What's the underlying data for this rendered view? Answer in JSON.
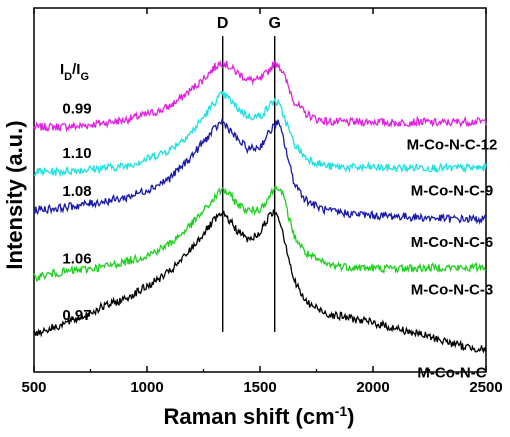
{
  "chart_data": {
    "type": "line",
    "title": "",
    "xlabel": "Raman shift (cm",
    "xlabel_sup": "-1",
    "xlabel_suffix": ")",
    "ylabel": "Intensity (a.u.)",
    "xlim": [
      500,
      2500
    ],
    "xticks": [
      500,
      1000,
      1500,
      2000,
      2500
    ],
    "y_scale": "arbitrary units (stacked, offset traces, no y tick labels)",
    "ylim": [
      0,
      10
    ],
    "grid": false,
    "legend": "none (series labelled in-plot on the right)",
    "ratio_header": {
      "main": "I",
      "sub1": "D",
      "slash": "/I",
      "sub2": "G"
    },
    "peak_lines": [
      {
        "label": "D",
        "x": 1335
      },
      {
        "label": "G",
        "x": 1565
      }
    ],
    "series": [
      {
        "name": "M-Co-N-C-12",
        "color": "#e020e0",
        "ratio": "0.99",
        "x": [
          500,
          600,
          700,
          800,
          900,
          1000,
          1050,
          1100,
          1150,
          1200,
          1250,
          1300,
          1330,
          1350,
          1400,
          1450,
          1500,
          1530,
          1560,
          1580,
          1600,
          1630,
          1650,
          1700,
          1750,
          1800,
          1900,
          2000,
          2100,
          2200,
          2300,
          2400,
          2500
        ],
        "values": [
          6.72,
          6.74,
          6.75,
          6.84,
          6.92,
          7.08,
          7.16,
          7.3,
          7.52,
          7.78,
          8.05,
          8.38,
          8.5,
          8.45,
          8.22,
          8.02,
          8.02,
          8.22,
          8.45,
          8.48,
          8.25,
          7.78,
          7.45,
          7.1,
          6.95,
          6.88,
          6.86,
          6.88,
          6.84,
          6.88,
          6.84,
          6.88,
          6.88
        ]
      },
      {
        "name": "M-Co-N-C-9",
        "color": "#20e0e0",
        "ratio": "1.10",
        "x": [
          500,
          600,
          700,
          800,
          900,
          1000,
          1050,
          1100,
          1150,
          1200,
          1250,
          1300,
          1330,
          1350,
          1400,
          1450,
          1500,
          1530,
          1560,
          1580,
          1600,
          1630,
          1650,
          1700,
          1750,
          1800,
          1900,
          2000,
          2100,
          2200,
          2300,
          2400,
          2500
        ],
        "values": [
          5.5,
          5.5,
          5.55,
          5.6,
          5.65,
          5.85,
          5.98,
          6.1,
          6.35,
          6.6,
          7.0,
          7.42,
          7.62,
          7.58,
          7.25,
          7.02,
          7.02,
          7.22,
          7.45,
          7.38,
          7.12,
          6.62,
          6.28,
          5.9,
          5.75,
          5.65,
          5.62,
          5.62,
          5.6,
          5.62,
          5.6,
          5.6,
          5.62
        ]
      },
      {
        "name": "M-Co-N-C-6",
        "color": "#1a1aa8",
        "ratio": "1.08",
        "x": [
          500,
          600,
          700,
          800,
          900,
          1000,
          1050,
          1100,
          1150,
          1200,
          1250,
          1300,
          1330,
          1350,
          1400,
          1450,
          1500,
          1530,
          1560,
          1580,
          1600,
          1630,
          1650,
          1700,
          1750,
          1800,
          1900,
          2000,
          2100,
          2200,
          2300,
          2400,
          2500
        ],
        "values": [
          4.45,
          4.5,
          4.58,
          4.68,
          4.78,
          5.0,
          5.15,
          5.32,
          5.62,
          5.95,
          6.32,
          6.68,
          6.88,
          6.78,
          6.38,
          6.12,
          6.18,
          6.48,
          6.75,
          6.85,
          6.5,
          5.72,
          5.22,
          4.75,
          4.55,
          4.42,
          4.35,
          4.3,
          4.28,
          4.25,
          4.22,
          4.2,
          4.2
        ]
      },
      {
        "name": "M-Co-N-C-3",
        "color": "#20d020",
        "ratio": "1.06",
        "x": [
          500,
          600,
          700,
          800,
          900,
          1000,
          1050,
          1100,
          1150,
          1200,
          1250,
          1300,
          1330,
          1350,
          1400,
          1450,
          1500,
          1530,
          1560,
          1580,
          1600,
          1630,
          1650,
          1700,
          1750,
          1800,
          1900,
          2000,
          2100,
          2200,
          2300,
          2400,
          2500
        ],
        "values": [
          2.6,
          2.72,
          2.8,
          2.88,
          3.02,
          3.2,
          3.35,
          3.52,
          3.78,
          4.08,
          4.42,
          4.78,
          5.02,
          4.96,
          4.62,
          4.42,
          4.48,
          4.72,
          5.0,
          5.12,
          4.88,
          4.22,
          3.75,
          3.28,
          3.08,
          2.95,
          2.88,
          2.85,
          2.85,
          2.85,
          2.88,
          2.85,
          2.9
        ]
      },
      {
        "name": "M-Co-N-C",
        "color": "#000000",
        "ratio": "0.97",
        "x": [
          500,
          600,
          700,
          800,
          900,
          1000,
          1050,
          1100,
          1150,
          1200,
          1250,
          1300,
          1330,
          1350,
          1400,
          1450,
          1500,
          1530,
          1560,
          1580,
          1600,
          1630,
          1650,
          1700,
          1750,
          1800,
          1900,
          2000,
          2100,
          2200,
          2300,
          2400,
          2500
        ],
        "values": [
          1.05,
          1.25,
          1.48,
          1.78,
          2.0,
          2.35,
          2.55,
          2.75,
          3.05,
          3.42,
          3.8,
          4.18,
          4.32,
          4.28,
          3.88,
          3.62,
          3.82,
          4.18,
          4.42,
          4.32,
          3.88,
          3.08,
          2.52,
          1.95,
          1.75,
          1.6,
          1.48,
          1.35,
          1.2,
          1.05,
          0.88,
          0.7,
          0.62
        ]
      }
    ]
  }
}
